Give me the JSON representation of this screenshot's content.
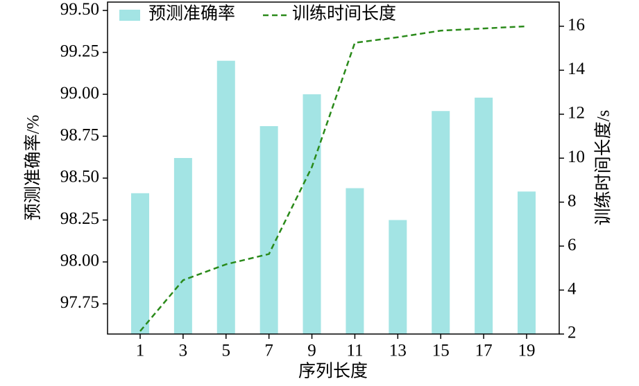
{
  "chart_data": {
    "type": "bar",
    "x_label": "序列长度",
    "y_label": "预测准确率/%",
    "y2_label": "训练时间长度/s",
    "categories": [
      "1",
      "3",
      "5",
      "7",
      "9",
      "11",
      "13",
      "15",
      "17",
      "19"
    ],
    "series": [
      {
        "name": "预测准确率",
        "type": "bar",
        "color": "#a3e4e4",
        "values": [
          98.41,
          98.62,
          99.2,
          98.81,
          99.0,
          98.44,
          98.25,
          98.9,
          98.98,
          98.42
        ]
      },
      {
        "name": "训练时间长度",
        "type": "line",
        "axis": "y2",
        "color": "#2a8a1a",
        "values": [
          2.13,
          4.45,
          5.17,
          5.64,
          9.6,
          15.25,
          15.5,
          15.8,
          15.9,
          16.0
        ]
      }
    ],
    "ylim": [
      97.57,
      99.55
    ],
    "yticks": [
      {
        "value": 97.75,
        "label": "97.75"
      },
      {
        "value": 98.0,
        "label": "98.00"
      },
      {
        "value": 98.25,
        "label": "98.25"
      },
      {
        "value": 98.5,
        "label": "98.50"
      },
      {
        "value": 98.75,
        "label": "98.75"
      },
      {
        "value": 99.0,
        "label": "99.00"
      },
      {
        "value": 99.25,
        "label": "99.25"
      },
      {
        "value": 99.5,
        "label": "99.50"
      }
    ],
    "y2lim": [
      2,
      17.1
    ],
    "y2ticks": [
      2,
      4,
      6,
      8,
      10,
      12,
      14,
      16
    ],
    "legend": "top"
  }
}
